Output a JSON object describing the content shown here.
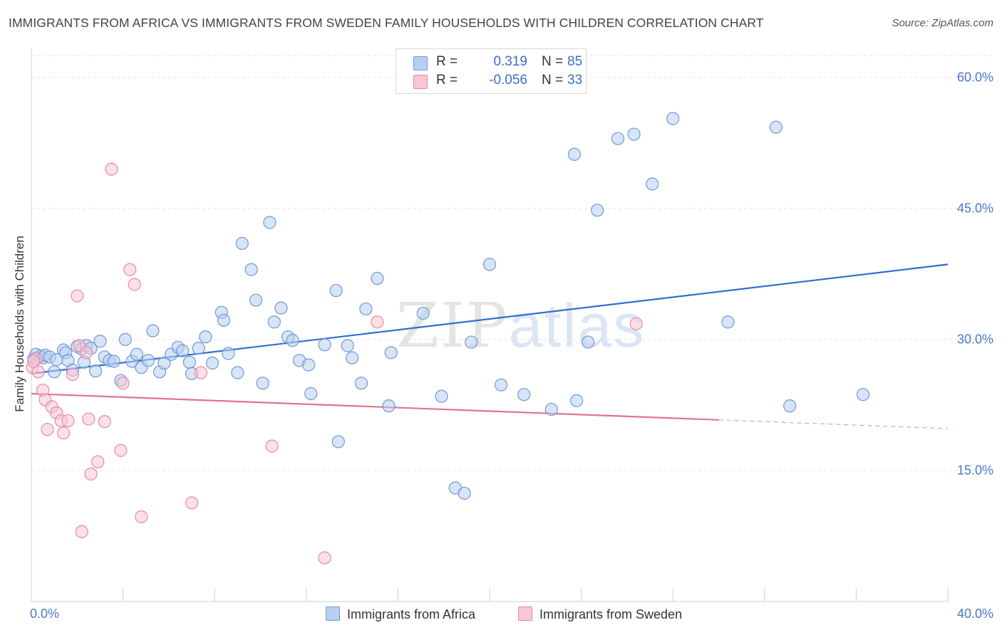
{
  "title": "IMMIGRANTS FROM AFRICA VS IMMIGRANTS FROM SWEDEN FAMILY HOUSEHOLDS WITH CHILDREN CORRELATION CHART",
  "source": "Source: ZipAtlas.com",
  "watermark": {
    "zip": "ZIP",
    "atlas": "atlas"
  },
  "legend": {
    "africa": {
      "r_label": "R =",
      "r_value": "0.319",
      "n_label": "N =",
      "n_value": "85"
    },
    "sweden": {
      "r_label": "R =",
      "r_value": "-0.056",
      "n_label": "N =",
      "n_value": "33"
    }
  },
  "colors": {
    "africa_fill": "#b8d0f0",
    "africa_stroke": "#6f98d6",
    "africa_line": "#2f6fd0",
    "sweden_fill": "#f8c6d5",
    "sweden_stroke": "#e58aa8",
    "sweden_line": "#e0719a",
    "grid": "#e4e4e4",
    "tick_text": "#4a78c8"
  },
  "chart_data": {
    "type": "scatter",
    "title": "IMMIGRANTS FROM AFRICA VS IMMIGRANTS FROM SWEDEN FAMILY HOUSEHOLDS WITH CHILDREN CORRELATION CHART",
    "xlabel": "",
    "ylabel": "Family Households with Children",
    "xlim": [
      0,
      40
    ],
    "ylim": [
      0,
      63
    ],
    "x_ticks": [
      0,
      40
    ],
    "x_tick_labels": [
      "0.0%",
      "40.0%"
    ],
    "y_ticks": [
      15,
      30,
      45,
      60
    ],
    "y_tick_labels": [
      "15.0%",
      "30.0%",
      "45.0%",
      "60.0%"
    ],
    "grid": true,
    "legend_position": "top-center",
    "series": [
      {
        "name": "Immigrants from Africa",
        "color": "#6f98d6",
        "trend": {
          "x": [
            0,
            40
          ],
          "y": [
            26.1,
            38.6
          ]
        },
        "points": [
          [
            0.1,
            27.8
          ],
          [
            0.2,
            28.3
          ],
          [
            0.4,
            28.1
          ],
          [
            0.5,
            27.9
          ],
          [
            0.6,
            28.2
          ],
          [
            0.8,
            28.0
          ],
          [
            1.0,
            26.3
          ],
          [
            1.1,
            27.7
          ],
          [
            1.4,
            28.8
          ],
          [
            1.5,
            28.5
          ],
          [
            1.6,
            27.6
          ],
          [
            1.8,
            26.5
          ],
          [
            2.0,
            29.2
          ],
          [
            2.2,
            28.9
          ],
          [
            2.3,
            27.4
          ],
          [
            2.4,
            29.3
          ],
          [
            2.6,
            29.0
          ],
          [
            2.8,
            26.4
          ],
          [
            3.0,
            29.8
          ],
          [
            3.2,
            28.0
          ],
          [
            3.4,
            27.6
          ],
          [
            3.6,
            27.5
          ],
          [
            3.9,
            25.3
          ],
          [
            4.1,
            30.0
          ],
          [
            4.4,
            27.5
          ],
          [
            4.6,
            28.3
          ],
          [
            4.8,
            26.8
          ],
          [
            5.1,
            27.6
          ],
          [
            5.3,
            31.0
          ],
          [
            5.6,
            26.3
          ],
          [
            5.8,
            27.3
          ],
          [
            6.1,
            28.3
          ],
          [
            6.4,
            29.1
          ],
          [
            6.6,
            28.7
          ],
          [
            6.9,
            27.4
          ],
          [
            7.0,
            26.1
          ],
          [
            7.3,
            29.0
          ],
          [
            7.6,
            30.3
          ],
          [
            7.9,
            27.3
          ],
          [
            8.3,
            33.1
          ],
          [
            8.4,
            32.2
          ],
          [
            8.6,
            28.4
          ],
          [
            9.0,
            26.2
          ],
          [
            9.2,
            41.0
          ],
          [
            9.6,
            38.0
          ],
          [
            9.8,
            34.5
          ],
          [
            10.1,
            25.0
          ],
          [
            10.4,
            43.4
          ],
          [
            10.6,
            32.0
          ],
          [
            10.9,
            33.6
          ],
          [
            11.2,
            30.3
          ],
          [
            11.4,
            29.9
          ],
          [
            11.7,
            27.6
          ],
          [
            12.1,
            27.1
          ],
          [
            12.2,
            23.8
          ],
          [
            12.8,
            29.4
          ],
          [
            13.3,
            35.6
          ],
          [
            13.4,
            18.3
          ],
          [
            13.8,
            29.3
          ],
          [
            14.0,
            27.9
          ],
          [
            14.4,
            25.0
          ],
          [
            14.6,
            33.5
          ],
          [
            15.1,
            37.0
          ],
          [
            15.6,
            22.4
          ],
          [
            15.7,
            28.5
          ],
          [
            17.1,
            33.0
          ],
          [
            17.9,
            23.5
          ],
          [
            18.5,
            13.0
          ],
          [
            18.9,
            12.4
          ],
          [
            19.2,
            29.7
          ],
          [
            20.0,
            38.6
          ],
          [
            20.5,
            24.8
          ],
          [
            21.5,
            23.7
          ],
          [
            22.7,
            22.0
          ],
          [
            23.7,
            51.2
          ],
          [
            23.8,
            23.0
          ],
          [
            24.3,
            29.7
          ],
          [
            24.7,
            44.8
          ],
          [
            25.6,
            53.0
          ],
          [
            26.3,
            53.5
          ],
          [
            27.1,
            47.8
          ],
          [
            28.0,
            55.3
          ],
          [
            30.4,
            32.0
          ],
          [
            32.5,
            54.3
          ],
          [
            33.1,
            22.4
          ],
          [
            36.3,
            23.7
          ]
        ]
      },
      {
        "name": "Immigrants from Sweden",
        "color": "#e58aa8",
        "trend": {
          "x": [
            0,
            30
          ],
          "y": [
            23.8,
            20.8
          ],
          "dashed_extension": {
            "x": [
              30,
              40
            ],
            "y": [
              20.8,
              19.8
            ]
          }
        },
        "points": [
          [
            0.05,
            26.8
          ],
          [
            0.2,
            27.8
          ],
          [
            0.3,
            26.3
          ],
          [
            0.5,
            24.2
          ],
          [
            0.6,
            23.1
          ],
          [
            0.7,
            19.7
          ],
          [
            0.9,
            22.3
          ],
          [
            1.1,
            21.6
          ],
          [
            1.3,
            20.7
          ],
          [
            1.4,
            19.3
          ],
          [
            1.6,
            20.7
          ],
          [
            1.8,
            26.0
          ],
          [
            2.0,
            35.0
          ],
          [
            2.1,
            29.3
          ],
          [
            2.2,
            8.0
          ],
          [
            2.4,
            28.5
          ],
          [
            2.5,
            20.9
          ],
          [
            2.6,
            14.6
          ],
          [
            2.9,
            16.0
          ],
          [
            3.2,
            20.6
          ],
          [
            3.5,
            49.5
          ],
          [
            3.9,
            17.3
          ],
          [
            4.0,
            25.0
          ],
          [
            4.3,
            38.0
          ],
          [
            4.5,
            36.3
          ],
          [
            4.8,
            9.7
          ],
          [
            7.0,
            11.3
          ],
          [
            7.4,
            26.2
          ],
          [
            10.5,
            17.8
          ],
          [
            12.8,
            5.0
          ],
          [
            15.1,
            32.0
          ],
          [
            26.4,
            31.8
          ],
          [
            0.1,
            27.5
          ]
        ]
      }
    ]
  },
  "bottom_legend": {
    "africa": "Immigrants from Africa",
    "sweden": "Immigrants from Sweden"
  }
}
